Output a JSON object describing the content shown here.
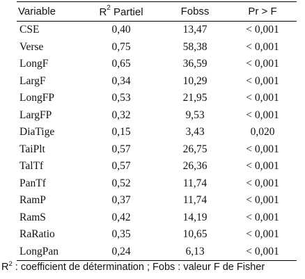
{
  "table": {
    "headers": {
      "variable": "Variable",
      "r2_prefix": "R",
      "r2_sup": "2",
      "r2_suffix": " Partiel",
      "fobs": "Fobss",
      "pr": "Pr > F"
    },
    "rows": [
      {
        "variable": "CSE",
        "r2": "0,40",
        "fobs": "13,47",
        "pr": "< 0,001"
      },
      {
        "variable": "Verse",
        "r2": "0,75",
        "fobs": "58,38",
        "pr": "< 0,001"
      },
      {
        "variable": "LongF",
        "r2": "0,65",
        "fobs": "36,59",
        "pr": "< 0,001"
      },
      {
        "variable": "LargF",
        "r2": "0,34",
        "fobs": "10,29",
        "pr": "< 0,001"
      },
      {
        "variable": "LongFP",
        "r2": "0,53",
        "fobs": "21,95",
        "pr": "< 0,001"
      },
      {
        "variable": "LargFP",
        "r2": "0,32",
        "fobs": "9,53",
        "pr": "< 0,001"
      },
      {
        "variable": "DiaTige",
        "r2": "0,15",
        "fobs": "3,43",
        "pr": "0,020"
      },
      {
        "variable": "TaiPlt",
        "r2": "0,57",
        "fobs": "26,75",
        "pr": "< 0,001"
      },
      {
        "variable": "TalTf",
        "r2": "0,57",
        "fobs": "26,36",
        "pr": "< 0,001"
      },
      {
        "variable": "PanTf",
        "r2": "0,52",
        "fobs": "11,74",
        "pr": "< 0,001"
      },
      {
        "variable": "RamP",
        "r2": "0,37",
        "fobs": "11,74",
        "pr": "< 0,001"
      },
      {
        "variable": "RamS",
        "r2": "0,42",
        "fobs": "14,19",
        "pr": "< 0,001"
      },
      {
        "variable": "RaRatio",
        "r2": "0,35",
        "fobs": "10,65",
        "pr": "< 0,001"
      },
      {
        "variable": "LongPan",
        "r2": "0,24",
        "fobs": "6,13",
        "pr": "< 0,001"
      }
    ]
  },
  "footnote": {
    "prefix": "R",
    "sup": "2",
    "text": " : coefficient de détermination ; Fobs : valeur F de Fisher"
  }
}
